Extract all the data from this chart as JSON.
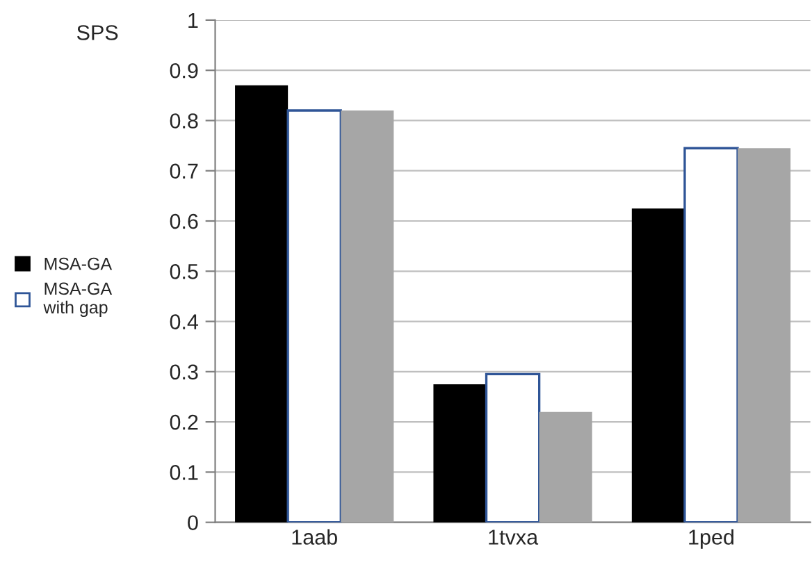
{
  "chart_data": {
    "type": "bar",
    "ylabel": "SPS",
    "categories": [
      "1aab",
      "1tvxa",
      "1ped"
    ],
    "series": [
      {
        "name": "MSA-GA",
        "color": "#000000",
        "values": [
          0.87,
          0.275,
          0.625
        ]
      },
      {
        "name": "MSA-GA with gap",
        "color": "#ffffff",
        "values": [
          0.82,
          0.295,
          0.745
        ]
      },
      {
        "color": "#a6a6a6",
        "values": [
          0.82,
          0.22,
          0.745
        ]
      }
    ],
    "ylim": [
      0,
      1
    ],
    "yticks": [
      0,
      0.1,
      0.2,
      0.3,
      0.4,
      0.5,
      0.6,
      0.7,
      0.8,
      0.9,
      1
    ],
    "grid": "y",
    "legend": "left"
  }
}
